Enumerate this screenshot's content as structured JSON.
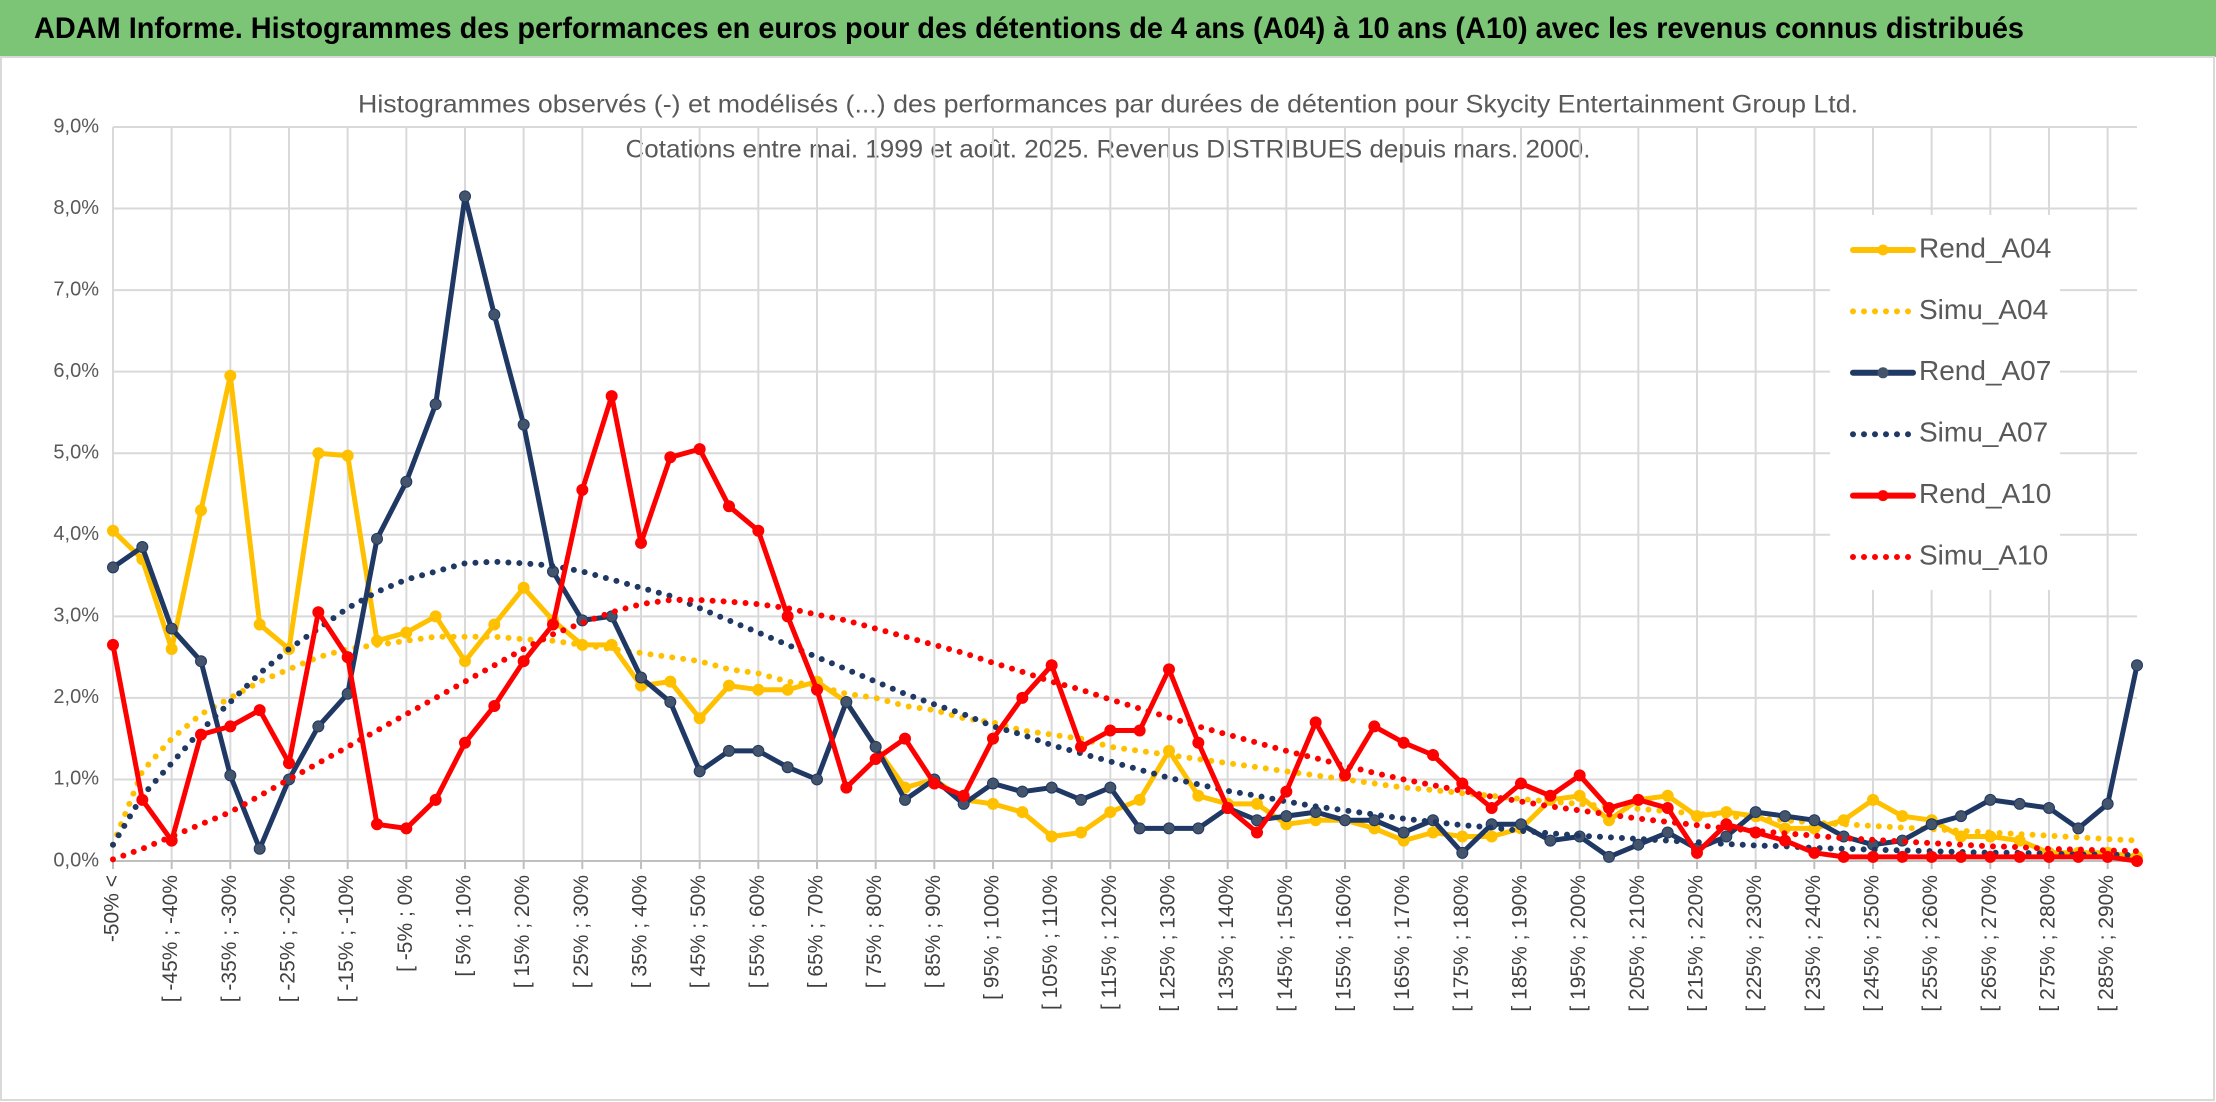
{
  "header": {
    "title": "ADAM Informe. Histogrammes des performances en euros pour des détentions de 4 ans (A04) à 10 ans (A10) avec les revenus connus distribués"
  },
  "chart_data": {
    "type": "line",
    "title": "Histogrammes observés (-) et modélisés (...) des performances par durées de détention pour Skycity Entertainment Group Ltd.",
    "subtitle": "Cotations entre mai. 1999 et août. 2025. Revenus DISTRIBUES depuis mars. 2000.",
    "categories": [
      "-50% <",
      null,
      "[ -45% ; -40%",
      null,
      "[ -35% ; -30%",
      null,
      "[ -25% ; -20%",
      null,
      "[ -15% ; -10%",
      null,
      "[ -5% ; 0%",
      null,
      "[ 5% ; 10%",
      null,
      "[ 15% ; 20%",
      null,
      "[ 25% ; 30%",
      null,
      "[ 35% ; 40%",
      null,
      "[ 45% ; 50%",
      null,
      "[ 55% ; 60%",
      null,
      "[ 65% ; 70%",
      null,
      "[ 75% ; 80%",
      null,
      "[ 85% ; 90%",
      null,
      "[ 95% ; 100%",
      null,
      "[ 105% ; 110%",
      null,
      "[ 115% ; 120%",
      null,
      "[ 125% ; 130%",
      null,
      "[ 135% ; 140%",
      null,
      "[ 145% ; 150%",
      null,
      "[ 155% ; 160%",
      null,
      "[ 165% ; 170%",
      null,
      "[ 175% ; 180%",
      null,
      "[ 185% ; 190%",
      null,
      "[ 195% ; 200%",
      null,
      "[ 205% ; 210%",
      null,
      "[ 215% ; 220%",
      null,
      "[ 225% ; 230%",
      null,
      "[ 235% ; 240%",
      null,
      "[ 245% ; 250%",
      null,
      "[ 255% ; 260%",
      null,
      "[ 265% ; 270%",
      null,
      "[ 275% ; 280%",
      null,
      "[ 285% ; 290%",
      null
    ],
    "ylim": [
      0,
      9
    ],
    "yticks": [
      {
        "value": 0,
        "label": "0,0%"
      },
      {
        "value": 1,
        "label": "1,0%"
      },
      {
        "value": 2,
        "label": "2,0%"
      },
      {
        "value": 3,
        "label": "3,0%"
      },
      {
        "value": 4,
        "label": "4,0%"
      },
      {
        "value": 5,
        "label": "5,0%"
      },
      {
        "value": 6,
        "label": "6,0%"
      },
      {
        "value": 7,
        "label": "7,0%"
      },
      {
        "value": 8,
        "label": "8,0%"
      },
      {
        "value": 9,
        "label": "9,0%"
      }
    ],
    "grid": true,
    "legend": "upper right",
    "series": [
      {
        "name": "Rend_A04",
        "color": "#ffc000",
        "line_style": "solid",
        "markers": true,
        "values": [
          4.05,
          3.7,
          2.6,
          4.3,
          5.95,
          2.9,
          2.6,
          5.0,
          4.97,
          2.7,
          2.8,
          3.0,
          2.45,
          2.9,
          3.35,
          2.95,
          2.65,
          2.65,
          2.15,
          2.2,
          1.75,
          2.15,
          2.1,
          2.1,
          2.2,
          1.95,
          1.4,
          0.9,
          1.0,
          0.75,
          0.7,
          0.6,
          0.3,
          0.35,
          0.6,
          0.75,
          1.35,
          0.8,
          0.7,
          0.7,
          0.45,
          0.5,
          0.5,
          0.4,
          0.25,
          0.35,
          0.3,
          0.3,
          0.4,
          0.75,
          0.8,
          0.5,
          0.75,
          0.8,
          0.55,
          0.6,
          0.55,
          0.4,
          0.4,
          0.5,
          0.75,
          0.55,
          0.5,
          0.3,
          0.3,
          0.25,
          0.1,
          0.1,
          0.1,
          0.05
        ]
      },
      {
        "name": "Simu_A04",
        "color": "#ffc000",
        "line_style": "dotted",
        "markers": false,
        "values": [
          0.2,
          1.1,
          1.5,
          1.8,
          2.0,
          2.2,
          2.35,
          2.5,
          2.6,
          2.65,
          2.7,
          2.75,
          2.75,
          2.75,
          2.72,
          2.7,
          2.65,
          2.6,
          2.55,
          2.5,
          2.45,
          2.35,
          2.3,
          2.2,
          2.15,
          2.05,
          2.0,
          1.9,
          1.85,
          1.75,
          1.7,
          1.6,
          1.55,
          1.5,
          1.4,
          1.35,
          1.3,
          1.25,
          1.2,
          1.15,
          1.1,
          1.05,
          1.0,
          0.95,
          0.9,
          0.87,
          0.83,
          0.8,
          0.76,
          0.73,
          0.7,
          0.67,
          0.64,
          0.61,
          0.58,
          0.55,
          0.52,
          0.5,
          0.47,
          0.45,
          0.43,
          0.41,
          0.39,
          0.37,
          0.35,
          0.33,
          0.31,
          0.29,
          0.27,
          0.25
        ]
      },
      {
        "name": "Rend_A07",
        "color": "#1f3864",
        "line_style": "solid",
        "markers": true,
        "values": [
          3.6,
          3.85,
          2.85,
          2.45,
          1.05,
          0.15,
          1.0,
          1.65,
          2.05,
          3.95,
          4.65,
          5.6,
          8.15,
          6.7,
          5.35,
          3.55,
          2.95,
          3.0,
          2.25,
          1.95,
          1.1,
          1.35,
          1.35,
          1.15,
          1.0,
          1.95,
          1.4,
          0.75,
          1.0,
          0.7,
          0.95,
          0.85,
          0.9,
          0.75,
          0.9,
          0.4,
          0.4,
          0.4,
          0.65,
          0.5,
          0.55,
          0.6,
          0.5,
          0.5,
          0.35,
          0.5,
          0.1,
          0.45,
          0.45,
          0.25,
          0.3,
          0.05,
          0.2,
          0.35,
          0.15,
          0.3,
          0.6,
          0.55,
          0.5,
          0.3,
          0.2,
          0.25,
          0.45,
          0.55,
          0.75,
          0.7,
          0.65,
          0.4,
          0.7,
          2.4
        ]
      },
      {
        "name": "Simu_A07",
        "color": "#1f3864",
        "line_style": "dotted",
        "markers": false,
        "values": [
          0.2,
          0.8,
          1.2,
          1.6,
          1.95,
          2.3,
          2.6,
          2.85,
          3.1,
          3.3,
          3.45,
          3.55,
          3.65,
          3.67,
          3.65,
          3.62,
          3.55,
          3.45,
          3.35,
          3.25,
          3.1,
          2.95,
          2.8,
          2.65,
          2.5,
          2.35,
          2.2,
          2.05,
          1.92,
          1.8,
          1.65,
          1.55,
          1.42,
          1.32,
          1.22,
          1.12,
          1.02,
          0.94,
          0.86,
          0.8,
          0.73,
          0.67,
          0.62,
          0.57,
          0.52,
          0.48,
          0.44,
          0.41,
          0.37,
          0.34,
          0.31,
          0.29,
          0.27,
          0.25,
          0.23,
          0.21,
          0.19,
          0.18,
          0.16,
          0.15,
          0.14,
          0.13,
          0.12,
          0.11,
          0.1,
          0.1,
          0.09,
          0.08,
          0.08,
          0.07
        ]
      },
      {
        "name": "Rend_A10",
        "color": "#ff0000",
        "line_style": "solid",
        "markers": true,
        "values": [
          2.65,
          0.75,
          0.25,
          1.55,
          1.65,
          1.85,
          1.2,
          3.05,
          2.5,
          0.45,
          0.4,
          0.75,
          1.45,
          1.9,
          2.45,
          2.9,
          4.55,
          5.7,
          3.9,
          4.95,
          5.05,
          4.35,
          4.05,
          3.0,
          2.1,
          0.9,
          1.25,
          1.5,
          0.95,
          0.8,
          1.5,
          2.0,
          2.4,
          1.4,
          1.6,
          1.6,
          2.35,
          1.45,
          0.65,
          0.35,
          0.85,
          1.7,
          1.05,
          1.65,
          1.45,
          1.3,
          0.95,
          0.65,
          0.95,
          0.8,
          1.05,
          0.65,
          0.75,
          0.65,
          0.1,
          0.45,
          0.35,
          0.25,
          0.1,
          0.05,
          0.05,
          0.05,
          0.05,
          0.05,
          0.05,
          0.05,
          0.05,
          0.05,
          0.05,
          0.0
        ]
      },
      {
        "name": "Simu_A10",
        "color": "#ff0000",
        "line_style": "dotted",
        "markers": false,
        "values": [
          0.02,
          0.15,
          0.3,
          0.45,
          0.6,
          0.8,
          1.0,
          1.2,
          1.4,
          1.6,
          1.8,
          2.0,
          2.2,
          2.4,
          2.6,
          2.78,
          2.92,
          3.05,
          3.15,
          3.2,
          3.2,
          3.18,
          3.15,
          3.1,
          3.02,
          2.95,
          2.85,
          2.75,
          2.65,
          2.55,
          2.43,
          2.32,
          2.2,
          2.1,
          1.98,
          1.87,
          1.76,
          1.65,
          1.55,
          1.45,
          1.35,
          1.26,
          1.17,
          1.08,
          1.0,
          0.93,
          0.86,
          0.79,
          0.73,
          0.67,
          0.62,
          0.57,
          0.52,
          0.48,
          0.44,
          0.4,
          0.37,
          0.34,
          0.31,
          0.28,
          0.26,
          0.24,
          0.22,
          0.2,
          0.18,
          0.17,
          0.15,
          0.14,
          0.13,
          0.12
        ]
      }
    ]
  }
}
